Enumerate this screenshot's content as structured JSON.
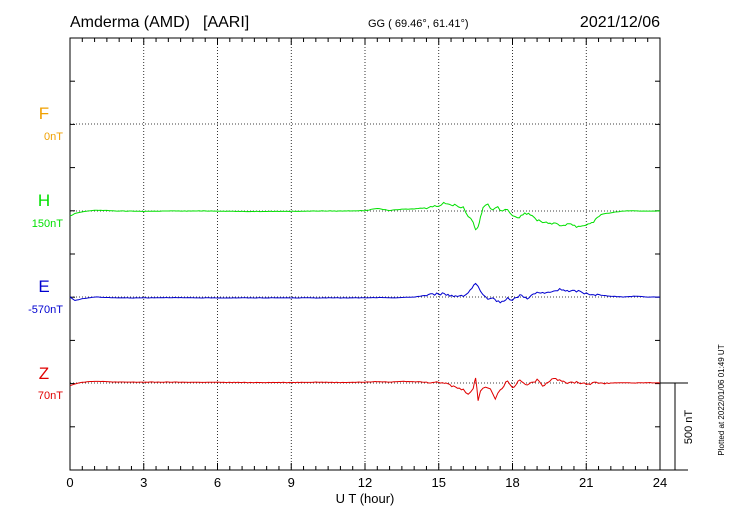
{
  "header": {
    "station": "Amderma (AMD)",
    "source": "[AARI]",
    "coords": "GG ( 69.46°,  61.41°)",
    "date": "2021/12/06"
  },
  "xaxis": {
    "label": "U T (hour)",
    "ticks": [
      "0",
      "3",
      "6",
      "9",
      "12",
      "15",
      "18",
      "21",
      "24"
    ]
  },
  "scale_bar": {
    "label": "500 nT",
    "value_nT": 500
  },
  "footer": {
    "plotted": "Plotted at 2022/01/06 01:49 UT"
  },
  "chart_data": {
    "type": "line",
    "title": "Amderma (AMD)  [AARI]",
    "xlabel": "U T (hour)",
    "ylabel": "",
    "xlim": [
      0,
      24
    ],
    "x_ticks": [
      0,
      3,
      6,
      9,
      12,
      15,
      18,
      21,
      24
    ],
    "grid": true,
    "series": [
      {
        "name": "F",
        "baseline_label": "0nT",
        "color": "#f0a000",
        "x": [],
        "values": []
      },
      {
        "name": "H",
        "baseline_label": "150nT",
        "color": "#00e000",
        "x": [
          0,
          0.2,
          0.5,
          1,
          2,
          3,
          4,
          5,
          6,
          7,
          8,
          9,
          10,
          11,
          12,
          12.5,
          13,
          13.5,
          14,
          14.5,
          15,
          15.2,
          15.5,
          15.8,
          16,
          16.2,
          16.4,
          16.5,
          16.6,
          16.7,
          16.8,
          17,
          17.2,
          17.4,
          17.6,
          17.8,
          18,
          18.2,
          18.5,
          18.8,
          19,
          19.3,
          19.6,
          20,
          20.3,
          20.6,
          21,
          21.3,
          21.6,
          22,
          22.5,
          23,
          23.5,
          24
        ],
        "values": [
          -30,
          -15,
          -5,
          5,
          0,
          -2,
          0,
          0,
          0,
          -3,
          -2,
          -2,
          0,
          0,
          2,
          15,
          3,
          10,
          12,
          20,
          30,
          50,
          35,
          30,
          20,
          -30,
          -60,
          -110,
          -85,
          -40,
          20,
          40,
          0,
          25,
          -5,
          10,
          -20,
          -40,
          -10,
          -30,
          -50,
          -65,
          -70,
          -85,
          -70,
          -90,
          -80,
          -60,
          -20,
          -10,
          0,
          0,
          0,
          0
        ]
      },
      {
        "name": "E",
        "baseline_label": "-570nT",
        "color": "#0000d0",
        "x": [
          0,
          0.2,
          0.5,
          1,
          2,
          3,
          4,
          5,
          6,
          7,
          8,
          9,
          10,
          11,
          12,
          12.5,
          13,
          13.5,
          14,
          14.5,
          15,
          15.3,
          15.6,
          16,
          16.2,
          16.5,
          16.7,
          16.8,
          17,
          17.2,
          17.5,
          17.8,
          18,
          18.3,
          18.6,
          19,
          19.3,
          19.6,
          20,
          20.3,
          20.6,
          21,
          21.3,
          21.6,
          22,
          22.5,
          23,
          23.5,
          24
        ],
        "values": [
          0,
          -20,
          -10,
          0,
          -5,
          -5,
          -3,
          -5,
          -5,
          -5,
          -5,
          -5,
          -5,
          -5,
          -5,
          -3,
          -5,
          -3,
          0,
          10,
          20,
          15,
          5,
          10,
          25,
          80,
          30,
          10,
          -20,
          -10,
          -30,
          -5,
          -20,
          10,
          -5,
          25,
          20,
          30,
          45,
          30,
          35,
          20,
          15,
          10,
          5,
          0,
          5,
          0,
          0
        ]
      },
      {
        "name": "Z",
        "baseline_label": "70nT",
        "color": "#e00000",
        "x": [
          0,
          0.2,
          0.5,
          1,
          2,
          3,
          4,
          5,
          6,
          7,
          8,
          9,
          10,
          11,
          12,
          12.5,
          13,
          13.5,
          14,
          14.5,
          15,
          15.3,
          15.6,
          16,
          16.2,
          16.4,
          16.5,
          16.6,
          16.7,
          16.9,
          17.1,
          17.3,
          17.5,
          17.8,
          18,
          18.3,
          18.6,
          19,
          19.3,
          19.6,
          20,
          20.3,
          20.6,
          21,
          21.5,
          22,
          22.5,
          23,
          23.5,
          24
        ],
        "values": [
          -15,
          -5,
          5,
          10,
          5,
          5,
          5,
          4,
          4,
          3,
          3,
          3,
          5,
          3,
          5,
          8,
          5,
          10,
          8,
          5,
          10,
          -5,
          -20,
          -40,
          -60,
          -30,
          30,
          -100,
          -40,
          -20,
          -35,
          -90,
          -40,
          15,
          -30,
          20,
          -10,
          15,
          -20,
          30,
          15,
          0,
          5,
          -5,
          0,
          0,
          2,
          0,
          2,
          0
        ]
      }
    ]
  }
}
